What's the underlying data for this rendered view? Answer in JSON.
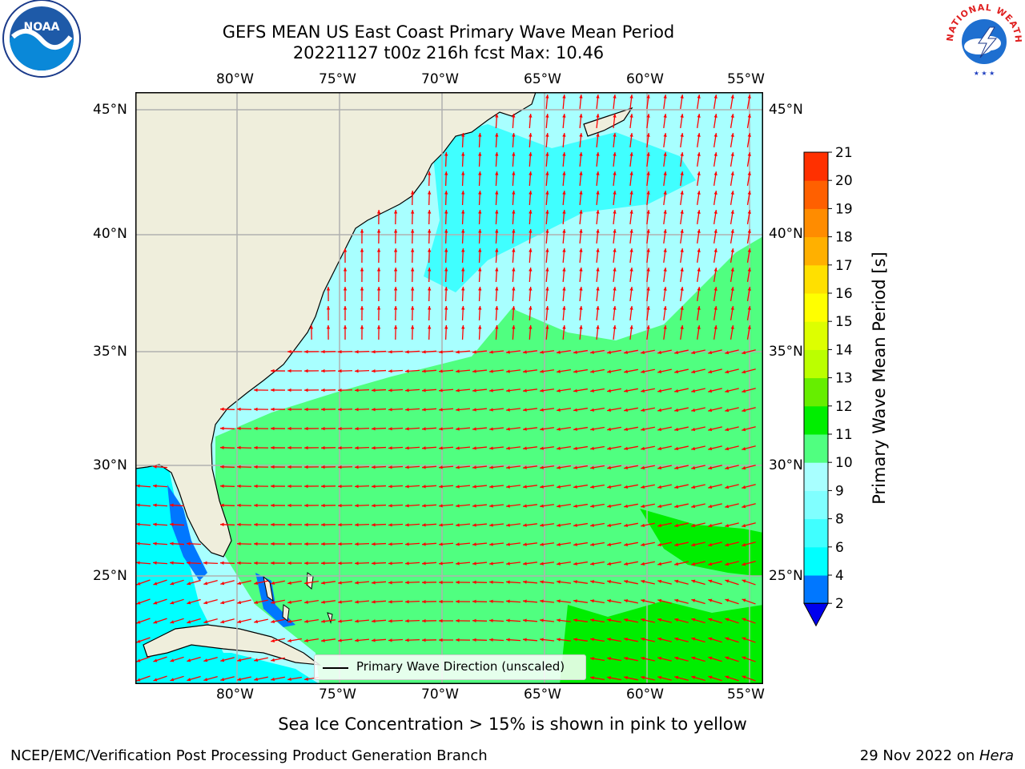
{
  "title": {
    "line1": "GEFS MEAN US East Coast Primary Wave Mean Period",
    "line2": "20221127 t00z 216h fcst   Max: 10.46"
  },
  "logos": {
    "left_text": "NOAA",
    "right_text": "NATIONAL WEATHER SERVICE"
  },
  "map": {
    "lon_labels": [
      "80°W",
      "75°W",
      "70°W",
      "65°W",
      "60°W",
      "55°W"
    ],
    "lat_labels": [
      "45°N",
      "40°N",
      "35°N",
      "30°N",
      "25°N"
    ],
    "lon_range": [
      -85,
      -55
    ],
    "lat_range": [
      20.5,
      46
    ],
    "legend": "Primary Wave Direction (unscaled)",
    "colors": {
      "land": "#efeedc",
      "vector": "#ff0000",
      "grid": "#b0b0b0"
    }
  },
  "colorbar": {
    "label": "Primary Wave Mean Period [s]",
    "ticks": [
      "2",
      "4",
      "6",
      "8",
      "9",
      "10",
      "11",
      "12",
      "13",
      "14",
      "15",
      "16",
      "17",
      "18",
      "19",
      "20",
      "21"
    ],
    "colors": [
      "#0077ff",
      "#00ffff",
      "#40ffff",
      "#80ffff",
      "#a8ffff",
      "#50ff80",
      "#00ee00",
      "#66ee00",
      "#bbff00",
      "#ddff00",
      "#ffff00",
      "#ffe000",
      "#ffb000",
      "#ff8c00",
      "#ff6000",
      "#ff3000",
      "#ff0000"
    ],
    "under_color": "#0000ee"
  },
  "subtitle": "Sea Ice Concentration > 15% is shown in pink to yellow",
  "footer": {
    "left": "NCEP/EMC/Verification Post Processing Product Generation Branch",
    "right_date": "29 Nov 2022 on ",
    "right_machine": "Hera"
  }
}
